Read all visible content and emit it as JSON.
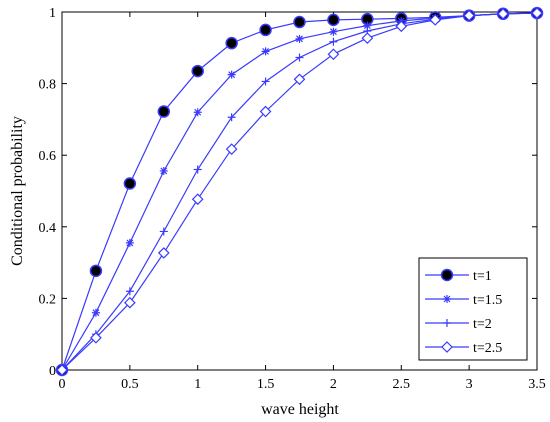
{
  "chart_data": {
    "type": "line",
    "title": "",
    "xlabel": "wave height",
    "ylabel": "Conditional probability",
    "xlim": [
      0,
      3.5
    ],
    "ylim": [
      0,
      1
    ],
    "xticks": [
      "0",
      "0.5",
      "1",
      "1.5",
      "2",
      "2.5",
      "3",
      "3.5"
    ],
    "yticks": [
      "0",
      "0.2",
      "0.4",
      "0.6",
      "0.8",
      "1"
    ],
    "grid": false,
    "legend_position": "bottom-right",
    "line_color": "#3a3aff",
    "x": [
      0,
      0.25,
      0.5,
      0.75,
      1,
      1.25,
      1.5,
      1.75,
      2,
      2.25,
      2.5,
      2.75,
      3,
      3.25,
      3.5
    ],
    "series": [
      {
        "name": "t=1",
        "marker": "filled-circle",
        "values": [
          0,
          0.277,
          0.521,
          0.722,
          0.835,
          0.913,
          0.95,
          0.972,
          0.978,
          0.98,
          0.982,
          0.985,
          0.99,
          0.995,
          0.997
        ]
      },
      {
        "name": "t=1.5",
        "marker": "asterisk",
        "values": [
          0,
          0.16,
          0.355,
          0.556,
          0.72,
          0.825,
          0.89,
          0.925,
          0.945,
          0.962,
          0.975,
          0.983,
          0.99,
          0.995,
          0.997
        ]
      },
      {
        "name": "t=2",
        "marker": "plus",
        "values": [
          0,
          0.1,
          0.22,
          0.387,
          0.56,
          0.706,
          0.806,
          0.873,
          0.917,
          0.947,
          0.967,
          0.98,
          0.99,
          0.995,
          0.997
        ]
      },
      {
        "name": "t=2.5",
        "marker": "diamond",
        "values": [
          0,
          0.09,
          0.188,
          0.327,
          0.477,
          0.617,
          0.722,
          0.812,
          0.882,
          0.927,
          0.96,
          0.978,
          0.99,
          0.995,
          0.997
        ]
      }
    ]
  }
}
